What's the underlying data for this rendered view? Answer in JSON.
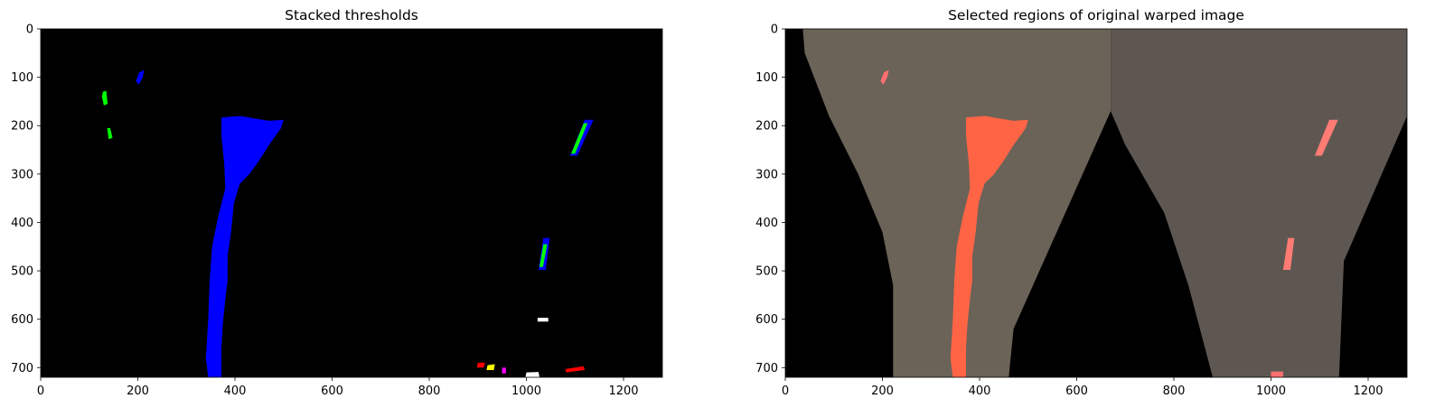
{
  "chart_data": [
    {
      "type": "image",
      "title": "Stacked thresholds",
      "xlim": [
        0,
        1280
      ],
      "ylim": [
        720,
        0
      ],
      "x_ticks": [
        0,
        200,
        400,
        600,
        800,
        1000,
        1200
      ],
      "y_ticks": [
        0,
        100,
        200,
        300,
        400,
        500,
        600,
        700
      ],
      "background": "#000000",
      "regions": [
        {
          "channel": "blue",
          "color": "#0000ff",
          "description": "left lane pixels",
          "points": [
            [
              372,
              183
            ],
            [
              412,
              180
            ],
            [
              440,
              185
            ],
            [
              470,
              190
            ],
            [
              500,
              188
            ],
            [
              495,
              205
            ],
            [
              470,
              240
            ],
            [
              448,
              275
            ],
            [
              430,
              300
            ],
            [
              410,
              320
            ],
            [
              398,
              360
            ],
            [
              392,
              420
            ],
            [
              385,
              470
            ],
            [
              385,
              520
            ],
            [
              380,
              560
            ],
            [
              375,
              610
            ],
            [
              372,
              660
            ],
            [
              372,
              700
            ],
            [
              372,
              720
            ],
            [
              345,
              720
            ],
            [
              340,
              680
            ],
            [
              345,
              600
            ],
            [
              348,
              520
            ],
            [
              353,
              450
            ],
            [
              365,
              390
            ],
            [
              380,
              330
            ],
            [
              378,
              280
            ],
            [
              372,
              220
            ]
          ]
        },
        {
          "channel": "blue",
          "color": "#0000ff",
          "description": "upper left blob",
          "points": [
            [
              203,
              90
            ],
            [
              213,
              85
            ],
            [
              210,
              100
            ],
            [
              202,
              115
            ],
            [
              196,
              108
            ]
          ]
        },
        {
          "channel": "green",
          "color": "#00ff00",
          "description": "left specks",
          "points": [
            [
              128,
              130
            ],
            [
              135,
              128
            ],
            [
              138,
              155
            ],
            [
              130,
              158
            ],
            [
              126,
              140
            ]
          ]
        },
        {
          "channel": "green",
          "color": "#00ff00",
          "description": "left specks low",
          "points": [
            [
              137,
              205
            ],
            [
              143,
              205
            ],
            [
              148,
              225
            ],
            [
              140,
              228
            ]
          ]
        },
        {
          "channel": "blue",
          "color": "#0000ff",
          "description": "right lane top segment",
          "points": [
            [
              1120,
              188
            ],
            [
              1138,
              188
            ],
            [
              1105,
              262
            ],
            [
              1090,
              262
            ]
          ]
        },
        {
          "channel": "green",
          "color": "#00ff00",
          "description": "right lane top segment edge",
          "points": [
            [
              1118,
              195
            ],
            [
              1126,
              195
            ],
            [
              1100,
              258
            ],
            [
              1092,
              258
            ]
          ]
        },
        {
          "channel": "blue",
          "color": "#0000ff",
          "description": "right lane mid segment",
          "points": [
            [
              1035,
              432
            ],
            [
              1048,
              432
            ],
            [
              1040,
              498
            ],
            [
              1025,
              498
            ]
          ]
        },
        {
          "channel": "green",
          "color": "#00ff00",
          "description": "right lane mid segment edge",
          "points": [
            [
              1035,
              445
            ],
            [
              1043,
              445
            ],
            [
              1034,
              492
            ],
            [
              1027,
              492
            ]
          ]
        },
        {
          "channel": "red",
          "color": "#ff0000",
          "description": "bottom noise",
          "points": [
            [
              1080,
              703
            ],
            [
              1118,
              697
            ],
            [
              1120,
              705
            ],
            [
              1082,
              710
            ]
          ]
        },
        {
          "channel": "red",
          "color": "#ff0000",
          "description": "bottom noise 2",
          "points": [
            [
              900,
              690
            ],
            [
              915,
              690
            ],
            [
              912,
              700
            ],
            [
              898,
              700
            ]
          ]
        },
        {
          "channel": "yellow",
          "color": "#ffff00",
          "description": "bottom noise 3",
          "points": [
            [
              920,
              695
            ],
            [
              935,
              693
            ],
            [
              933,
              705
            ],
            [
              918,
              705
            ]
          ]
        },
        {
          "channel": "white",
          "color": "#ffffff",
          "description": "bottom bright",
          "points": [
            [
              1000,
              710
            ],
            [
              1025,
              709
            ],
            [
              1027,
              720
            ],
            [
              998,
              720
            ]
          ]
        },
        {
          "channel": "magenta",
          "color": "#ff00ff",
          "description": "bottom magenta",
          "points": [
            [
              950,
              700
            ],
            [
              958,
              700
            ],
            [
              958,
              712
            ],
            [
              950,
              712
            ]
          ]
        },
        {
          "channel": "white",
          "color": "#ffffff",
          "description": "mid specks",
          "points": [
            [
              1023,
              597
            ],
            [
              1045,
              597
            ],
            [
              1045,
              605
            ],
            [
              1023,
              605
            ]
          ]
        }
      ]
    },
    {
      "type": "image",
      "title": "Selected regions of original warped image",
      "xlim": [
        0,
        1280
      ],
      "ylim": [
        720,
        0
      ],
      "x_ticks": [
        0,
        200,
        400,
        600,
        800,
        1000,
        1200
      ],
      "y_ticks": [
        0,
        100,
        200,
        300,
        400,
        500,
        600,
        700
      ],
      "background": "#000000",
      "colors": {
        "road": "#6e655a",
        "road_dark": "#4a433c",
        "highlight": "#ff6a4d",
        "highlight_light": "#ff7b73"
      },
      "regions": [
        {
          "channel": "road",
          "color": "#6b6258",
          "description": "left road warp",
          "points": [
            [
              36,
              0
            ],
            [
              670,
              0
            ],
            [
              670,
              170
            ],
            [
              470,
              620
            ],
            [
              460,
              720
            ],
            [
              222,
              720
            ],
            [
              222,
              530
            ],
            [
              200,
              420
            ],
            [
              150,
              300
            ],
            [
              90,
              180
            ],
            [
              40,
              50
            ]
          ]
        },
        {
          "channel": "road",
          "color": "#5e5751",
          "description": "right road warp",
          "points": [
            [
              670,
              0
            ],
            [
              1280,
              0
            ],
            [
              1280,
              180
            ],
            [
              1150,
              480
            ],
            [
              1140,
              720
            ],
            [
              880,
              720
            ],
            [
              830,
              530
            ],
            [
              780,
              380
            ],
            [
              700,
              240
            ],
            [
              670,
              170
            ]
          ]
        },
        {
          "channel": "highlight",
          "color": "#ff6545",
          "description": "left lane",
          "points": [
            [
              372,
              183
            ],
            [
              412,
              180
            ],
            [
              440,
              185
            ],
            [
              470,
              190
            ],
            [
              500,
              188
            ],
            [
              495,
              205
            ],
            [
              470,
              240
            ],
            [
              448,
              275
            ],
            [
              430,
              300
            ],
            [
              410,
              320
            ],
            [
              398,
              360
            ],
            [
              392,
              420
            ],
            [
              385,
              470
            ],
            [
              385,
              520
            ],
            [
              380,
              560
            ],
            [
              375,
              610
            ],
            [
              372,
              660
            ],
            [
              372,
              700
            ],
            [
              372,
              720
            ],
            [
              345,
              720
            ],
            [
              340,
              680
            ],
            [
              345,
              600
            ],
            [
              348,
              520
            ],
            [
              353,
              450
            ],
            [
              365,
              390
            ],
            [
              380,
              330
            ],
            [
              378,
              280
            ],
            [
              372,
              220
            ]
          ]
        },
        {
          "channel": "highlight",
          "color": "#ff7070",
          "description": "upper left speck",
          "points": [
            [
              203,
              90
            ],
            [
              213,
              85
            ],
            [
              210,
              100
            ],
            [
              202,
              115
            ],
            [
              196,
              108
            ]
          ]
        },
        {
          "channel": "highlight",
          "color": "#ff7b73",
          "description": "right lane top",
          "points": [
            [
              1120,
              188
            ],
            [
              1138,
              188
            ],
            [
              1105,
              262
            ],
            [
              1090,
              262
            ]
          ]
        },
        {
          "channel": "highlight",
          "color": "#ff7b73",
          "description": "right lane mid",
          "points": [
            [
              1035,
              432
            ],
            [
              1048,
              432
            ],
            [
              1040,
              498
            ],
            [
              1025,
              498
            ]
          ]
        },
        {
          "channel": "highlight",
          "color": "#ff7070",
          "description": "bottom specks",
          "points": [
            [
              1000,
              708
            ],
            [
              1025,
              708
            ],
            [
              1025,
              720
            ],
            [
              1000,
              720
            ]
          ]
        }
      ]
    }
  ]
}
